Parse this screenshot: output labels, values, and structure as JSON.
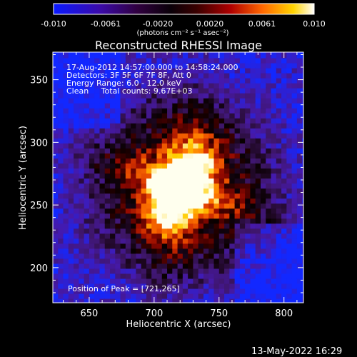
{
  "chart_data": {
    "type": "heatmap",
    "title": "Reconstructed RHESSI Image",
    "xlabel": "Heliocentric X (arcsec)",
    "ylabel": "Heliocentric Y (arcsec)",
    "xlim": [
      622,
      815
    ],
    "ylim": [
      172,
      372
    ],
    "xticks": [
      650,
      700,
      750,
      800
    ],
    "yticks": [
      200,
      250,
      300,
      350
    ],
    "colorbar": {
      "min": -0.01,
      "max": 0.01,
      "ticks": [
        "-0.010",
        "-0.0061",
        "-0.0020",
        "0.0020",
        "0.0061",
        "0.010"
      ],
      "label": "(photons cm⁻² s⁻¹ asec⁻²)"
    },
    "annotations": [
      "17-Aug-2012 14:57:00.000 to 14:58:24.000",
      "Detectors: 3F 5F 6F 7F 8F, Att 0",
      "Energy Range: 6.0 - 12.0 keV",
      "Clean     Total counts: 9.67E+03"
    ],
    "peak_text": "Position of Peak = [721,265]",
    "peak": [
      721,
      265
    ],
    "timestamp": "13-May-2022 16:29",
    "colors": {
      "background": "#000000",
      "text": "#ffffff"
    }
  }
}
